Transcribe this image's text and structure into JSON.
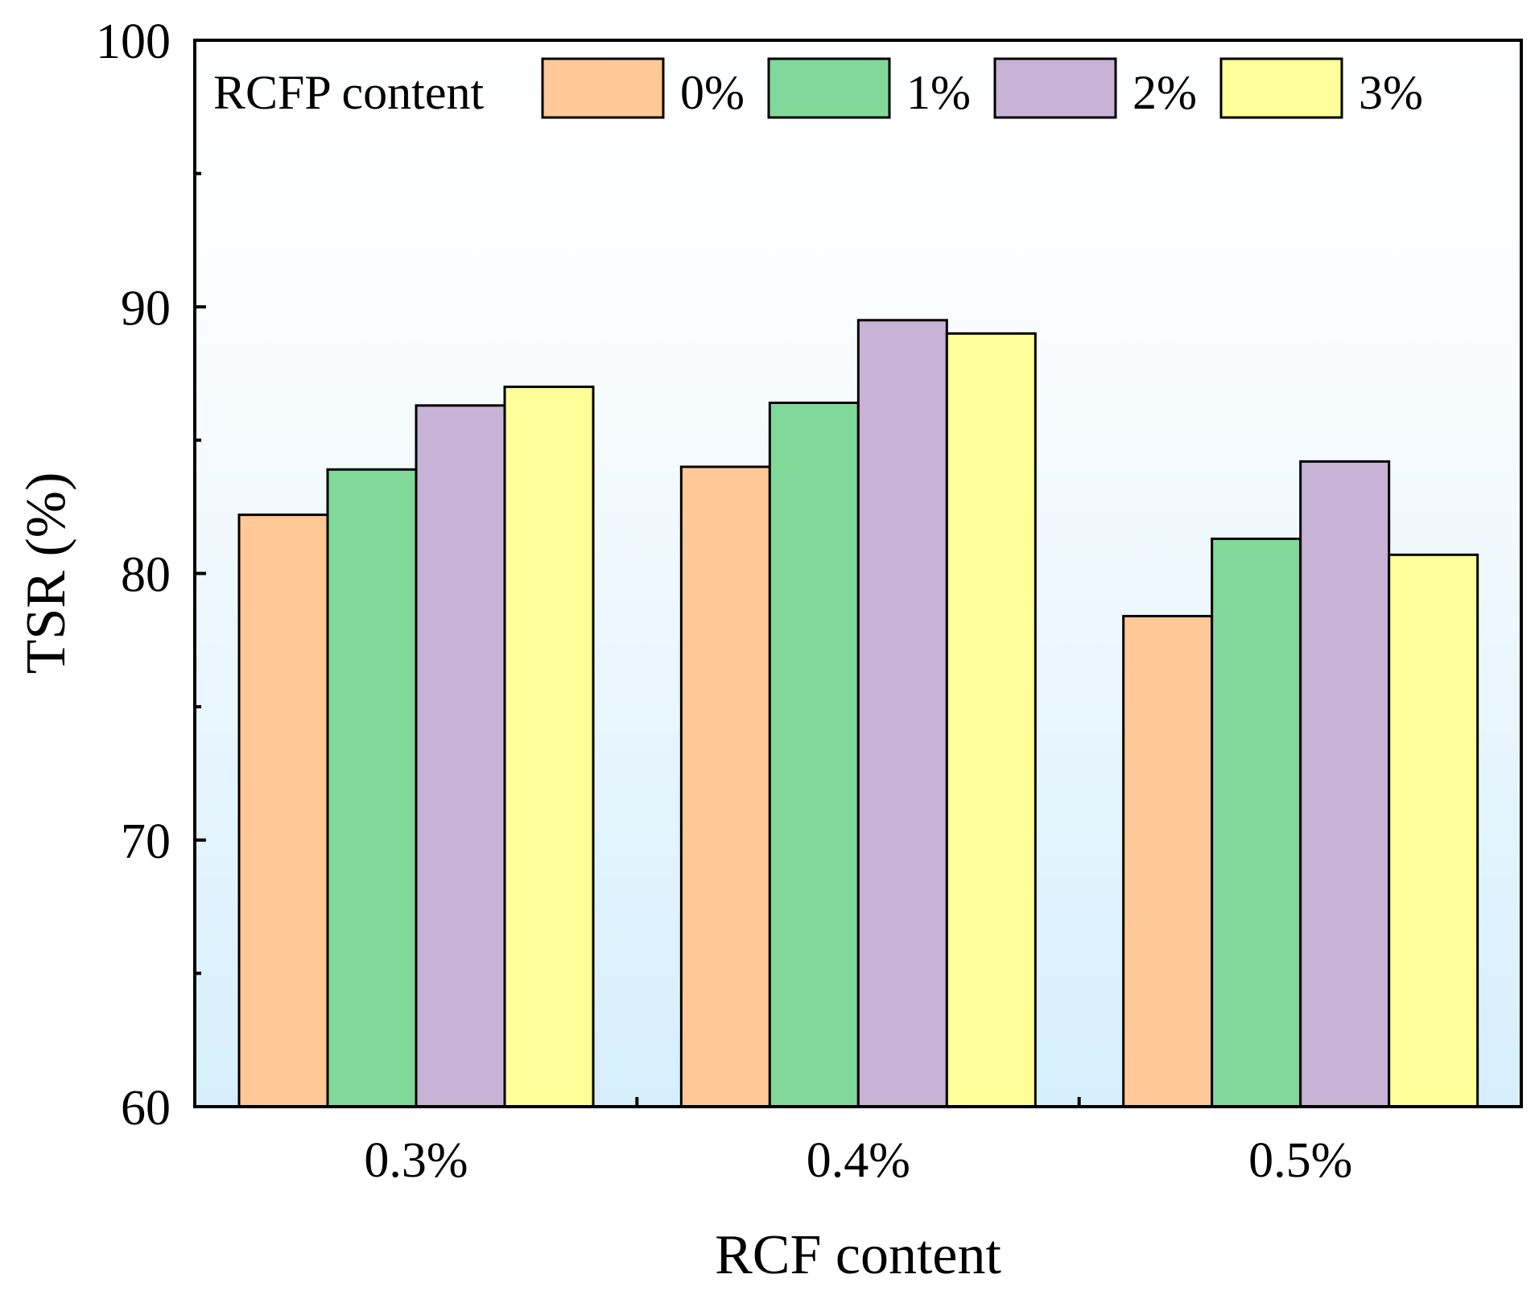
{
  "chart_data": {
    "type": "bar",
    "title": "",
    "xlabel": "RCF content",
    "ylabel": "TSR (%)",
    "ylim": [
      60,
      100
    ],
    "yticks": [
      60,
      70,
      80,
      90,
      100
    ],
    "yminor_step": 5,
    "grid": false,
    "background": "gradient light blue (bottom) to white (top)",
    "categories": [
      "0.3%",
      "0.4%",
      "0.5%"
    ],
    "legend": {
      "title": "RCFP content",
      "placement": "top"
    },
    "series": [
      {
        "name": "0%",
        "color": "#FFC896",
        "values": [
          82.2,
          84.0,
          78.4
        ]
      },
      {
        "name": "1%",
        "color": "#80D998",
        "values": [
          83.9,
          86.4,
          81.3
        ]
      },
      {
        "name": "2%",
        "color": "#C8B2D6",
        "values": [
          86.3,
          89.5,
          84.2
        ]
      },
      {
        "name": "3%",
        "color": "#FFFF99",
        "values": [
          87.0,
          89.0,
          80.7
        ]
      }
    ]
  }
}
